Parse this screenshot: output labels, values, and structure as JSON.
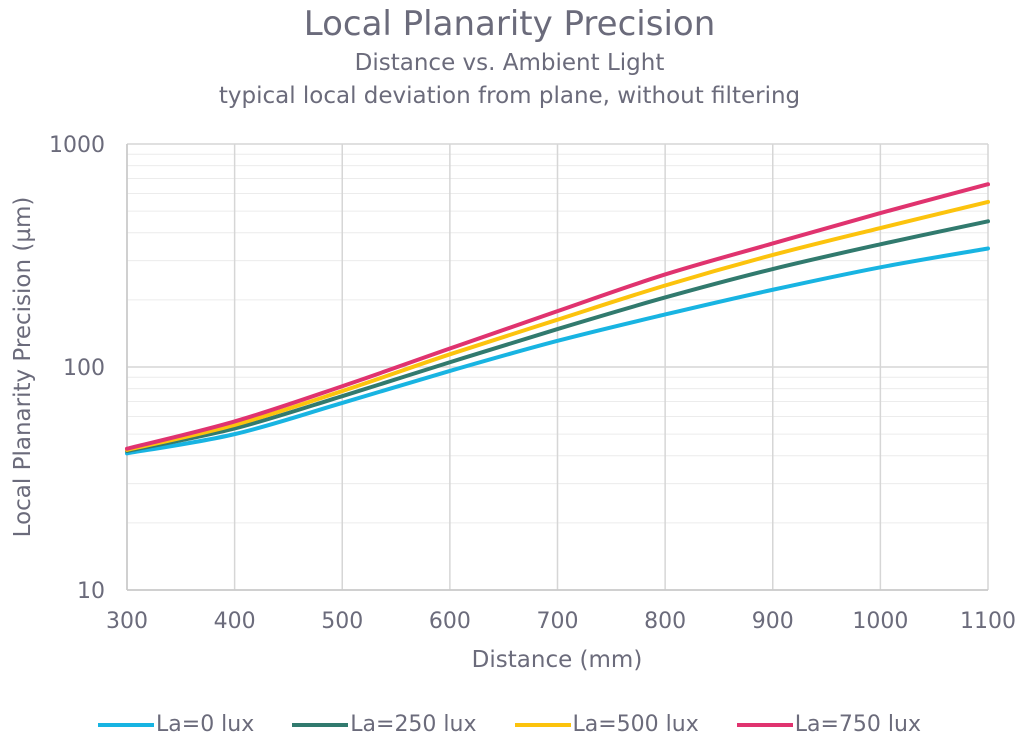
{
  "chart_data": {
    "type": "line",
    "title": "Local Planarity Precision",
    "subtitle": [
      "Distance vs. Ambient Light",
      "typical local deviation from plane, without filtering"
    ],
    "xlabel": "Distance (mm)",
    "ylabel": "Local Planarity Precision (µm)",
    "x": [
      300,
      400,
      500,
      600,
      700,
      800,
      900,
      1000,
      1100
    ],
    "xlim": [
      300,
      1100
    ],
    "ylim": [
      10,
      1000
    ],
    "yscale": "log",
    "xticks": [
      "300",
      "400",
      "500",
      "600",
      "700",
      "800",
      "900",
      "1000",
      "1100"
    ],
    "yticks": [
      "10",
      "100",
      "1000"
    ],
    "grid": true,
    "legend_position": "bottom",
    "series": [
      {
        "name": "La=0 lux",
        "color": "#18b4e2",
        "values": [
          41,
          50,
          69,
          96,
          131,
          172,
          222,
          280,
          340
        ]
      },
      {
        "name": "La=250 lux",
        "color": "#317a6e",
        "values": [
          42,
          53,
          74,
          105,
          148,
          205,
          275,
          355,
          450
        ]
      },
      {
        "name": "La=500 lux",
        "color": "#fcc30d",
        "values": [
          42.5,
          55,
          78,
          114,
          163,
          232,
          318,
          420,
          550
        ]
      },
      {
        "name": "La=750 lux",
        "color": "#e0336f",
        "values": [
          43,
          57,
          82,
          121,
          178,
          260,
          358,
          490,
          660
        ]
      }
    ]
  }
}
